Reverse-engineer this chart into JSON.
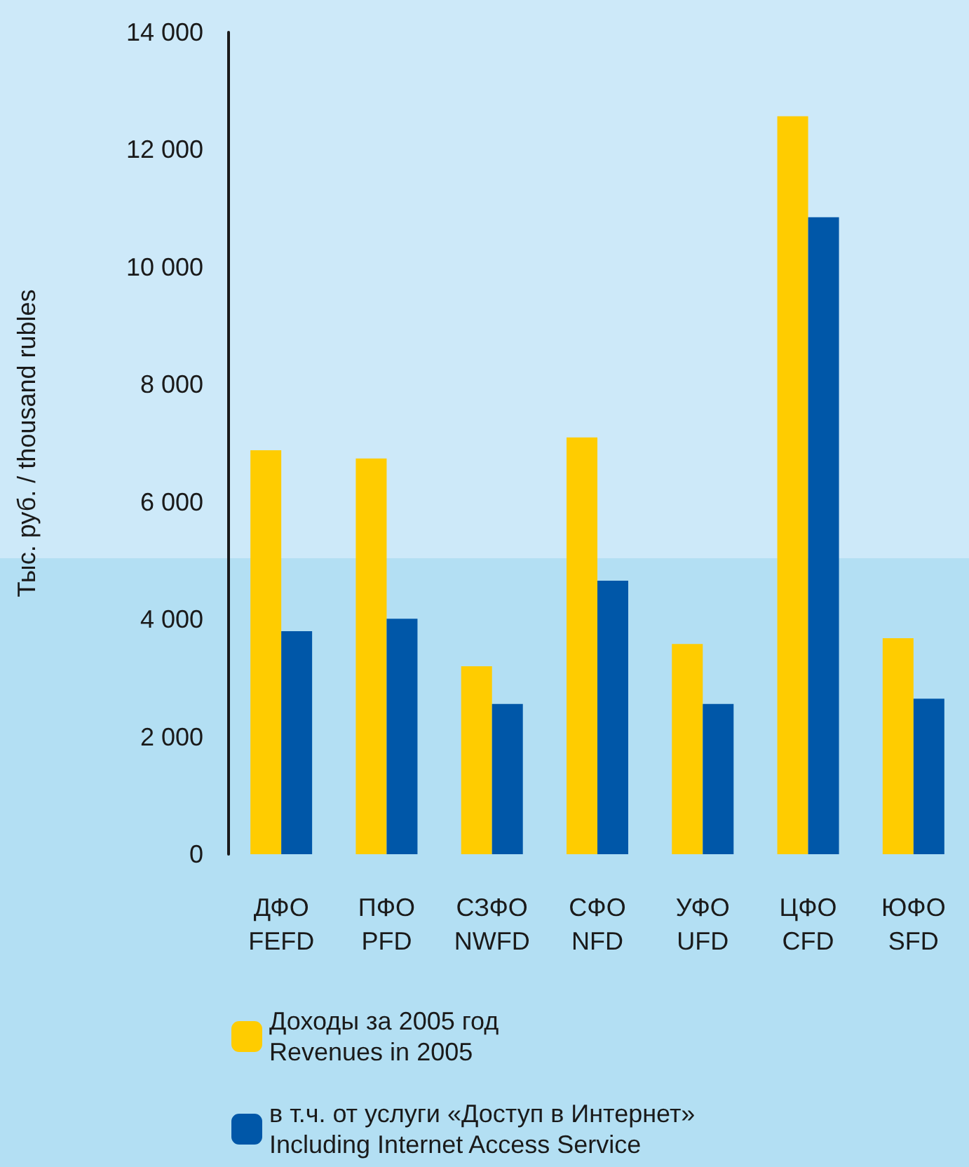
{
  "chart_data": {
    "type": "bar",
    "ylabel": "Тыс. руб. / thousand rubles",
    "categories": [
      "ДФО\nFEFD",
      "ПФО\nPFD",
      "СЗФО\nNWFD",
      "СФО\nNFD",
      "УФО\nUFD",
      "ЦФО\nCFD",
      "ЮФО\nSFD"
    ],
    "series": [
      {
        "name": "Доходы за 2005 год\nRevenues in 2005",
        "color": "#ffcc00",
        "values": [
          6880,
          6740,
          3200,
          7100,
          3580,
          12570,
          3680
        ]
      },
      {
        "name": "в т.ч. от услуги «Доступ в Интернет»\nIncluding Internet Access Service",
        "color": "#0057a8",
        "values": [
          3800,
          4010,
          2560,
          4660,
          2560,
          10850,
          2650
        ]
      }
    ],
    "ylim": [
      0,
      14000
    ],
    "yticks": [
      {
        "value": 0,
        "label": "0"
      },
      {
        "value": 2000,
        "label": "2 000"
      },
      {
        "value": 4000,
        "label": "4 000"
      },
      {
        "value": 6000,
        "label": "6 000"
      },
      {
        "value": 8000,
        "label": "8 000"
      },
      {
        "value": 10000,
        "label": "10 000"
      },
      {
        "value": 12000,
        "label": "12 000"
      },
      {
        "value": 14000,
        "label": "14 000"
      }
    ],
    "grid": false,
    "legend": "bottom left"
  }
}
